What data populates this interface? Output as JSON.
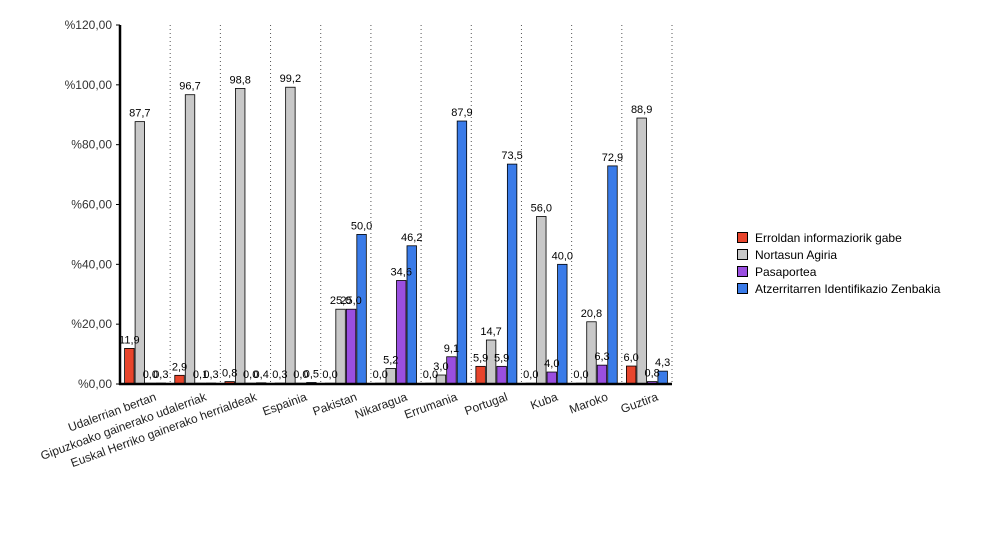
{
  "chart_data": {
    "type": "bar",
    "categories": [
      "Udalerrian bertan",
      "Gipuzkoako gainerako udalerriak",
      "Euskal Herriko gainerako herrialdeak",
      "Espainia",
      "Pakistan",
      "Nikaragua",
      "Errumania",
      "Portugal",
      "Kuba",
      "Maroko",
      "Guztira"
    ],
    "series": [
      {
        "name": "Erroldan informaziorik gabe",
        "color": "#e8452c",
        "values": [
          11.9,
          2.9,
          0.8,
          0.3,
          0.0,
          0.0,
          0.0,
          5.9,
          0.0,
          0.0,
          6.0
        ]
      },
      {
        "name": "Nortasun Agiria",
        "color": "#c8c8c8",
        "values": [
          87.7,
          96.7,
          98.8,
          99.2,
          25.0,
          5.2,
          3.0,
          14.7,
          56.0,
          20.8,
          88.9
        ]
      },
      {
        "name": "Pasaportea",
        "color": "#9a4fe0",
        "values": [
          0.0,
          0.1,
          0.0,
          0.0,
          25.0,
          34.6,
          9.1,
          5.9,
          4.0,
          6.3,
          0.8
        ]
      },
      {
        "name": "Atzerritarren Identifikazio Zenbakia",
        "color": "#3a7be8",
        "values": [
          0.3,
          0.3,
          0.4,
          0.5,
          50.0,
          46.2,
          87.9,
          73.5,
          40.0,
          72.9,
          4.3
        ]
      }
    ],
    "ylim": [
      0,
      120
    ],
    "yticks": [
      0,
      20,
      40,
      60,
      80,
      100,
      120
    ],
    "ytick_labels": [
      "%0,00",
      "%20,00",
      "%40,00",
      "%60,00",
      "%80,00",
      "%100,00",
      "%120,00"
    ],
    "title": "",
    "xlabel": "",
    "ylabel": "",
    "grid": "vertical-dotted",
    "legend_position": "right"
  }
}
